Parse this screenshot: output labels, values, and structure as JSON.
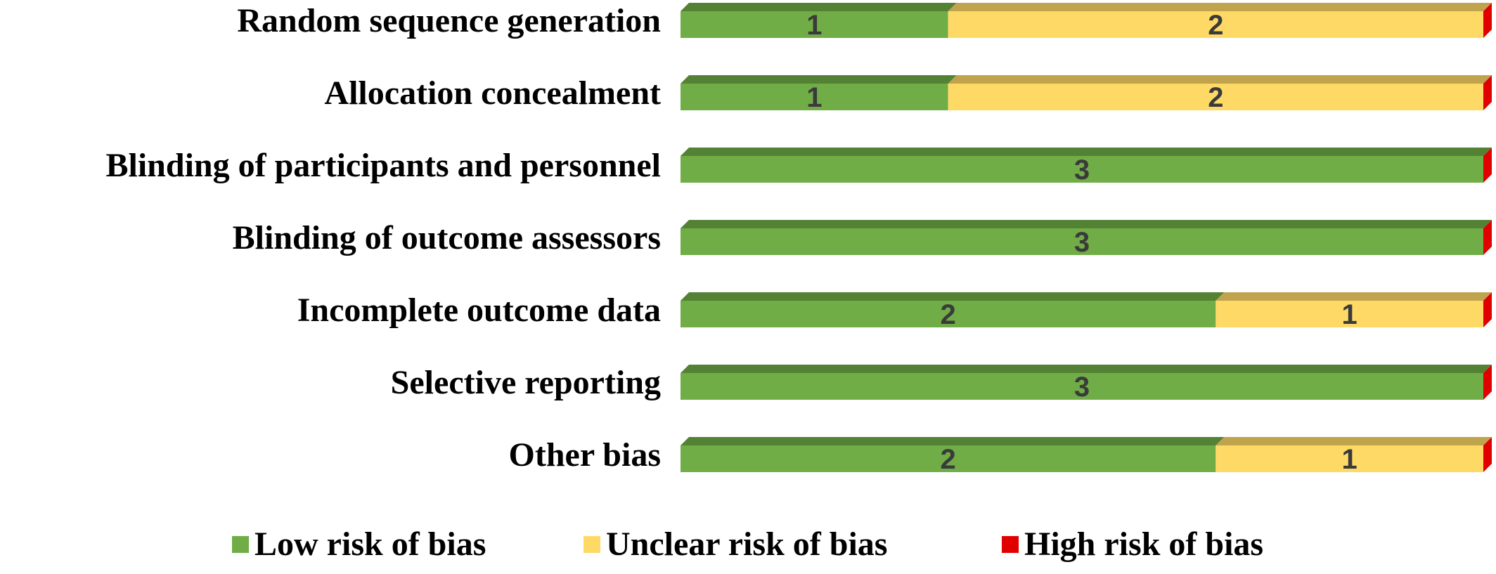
{
  "chart_data": {
    "type": "bar",
    "orientation": "horizontal",
    "stacked": true,
    "categories": [
      "Random sequence generation",
      "Allocation concealment",
      "Blinding of participants and personnel",
      "Blinding of outcome assessors",
      "Incomplete outcome data",
      "Selective reporting",
      "Other bias"
    ],
    "series": [
      {
        "name": "Low risk of bias",
        "color": "#70ad47",
        "values": [
          1,
          1,
          3,
          3,
          2,
          3,
          2
        ]
      },
      {
        "name": "Unclear risk of bias",
        "color": "#ffd966",
        "values": [
          2,
          2,
          0,
          0,
          1,
          0,
          1
        ]
      },
      {
        "name": "High risk of bias",
        "color": "#e00000",
        "values": [
          0,
          0,
          0,
          0,
          0,
          0,
          0
        ]
      }
    ],
    "xlim": [
      0,
      3
    ],
    "grid": false,
    "legend_position": "bottom",
    "data_labels": true
  }
}
